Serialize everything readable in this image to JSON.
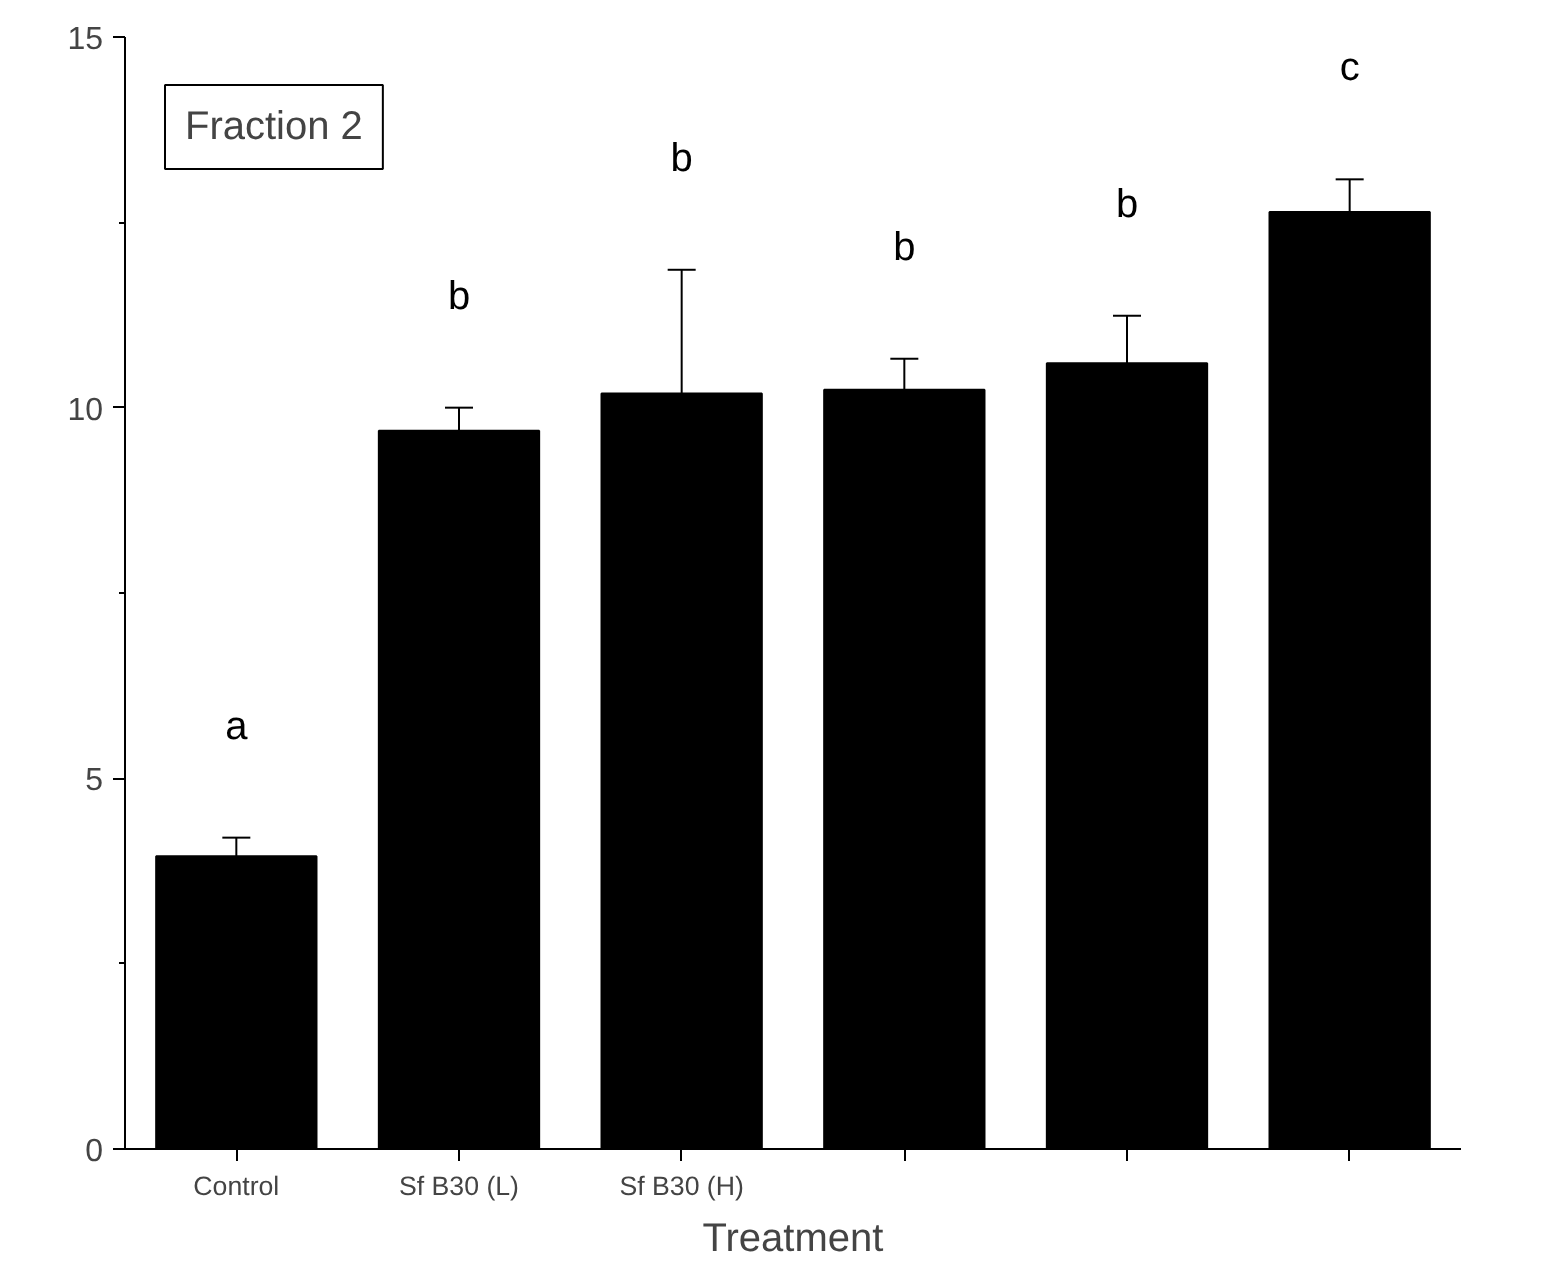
{
  "chart_data": {
    "type": "bar",
    "categories": [
      "Control",
      "Sf B30 (L)",
      "Sf B30 (H)",
      null,
      null,
      null
    ],
    "values": [
      3.95,
      9.69,
      10.19,
      10.24,
      10.6,
      12.64
    ],
    "errors": [
      0.25,
      0.31,
      1.67,
      0.42,
      0.64,
      0.44
    ],
    "color": "#000000",
    "xlabel": "Treatment",
    "annotations": [
      "Fraction 2",
      "a",
      "b",
      "b",
      "b",
      "b",
      "c"
    ],
    "ylim": [
      0,
      15
    ],
    "yticks": [
      0,
      5,
      10,
      15
    ],
    "grid": false
  }
}
